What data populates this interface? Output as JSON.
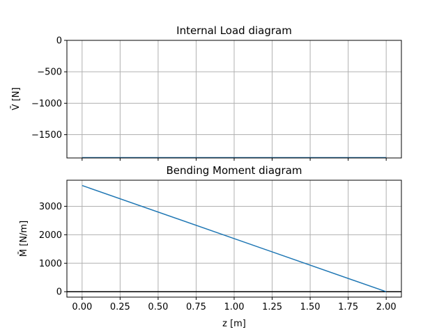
{
  "chart_data": [
    {
      "type": "line",
      "title": "Internal Load diagram",
      "xlabel": "",
      "ylabel": "V̄ [N]",
      "xlim": [
        -0.1,
        2.1
      ],
      "ylim": [
        -1870,
        0
      ],
      "xticks": [
        0,
        0.25,
        0.5,
        0.75,
        1.0,
        1.25,
        1.5,
        1.75,
        2.0
      ],
      "show_xtick_labels": false,
      "yticks": [
        0,
        -500,
        -1000,
        -1500
      ],
      "ytick_labels": [
        "0",
        "−500",
        "−1000",
        "−1500"
      ],
      "grid": true,
      "series": [
        {
          "x": [
            0,
            2.0
          ],
          "y": [
            -1865,
            -1865
          ],
          "color": "#1f77b4"
        }
      ]
    },
    {
      "type": "line",
      "title": "Bending Moment diagram",
      "xlabel": "z [m]",
      "ylabel": "M̄ [N/m]",
      "xlim": [
        -0.1,
        2.1
      ],
      "ylim": [
        -190,
        3915
      ],
      "xticks": [
        0,
        0.25,
        0.5,
        0.75,
        1.0,
        1.25,
        1.5,
        1.75,
        2.0
      ],
      "xtick_labels": [
        "0.00",
        "0.25",
        "0.50",
        "0.75",
        "1.00",
        "1.25",
        "1.50",
        "1.75",
        "2.00"
      ],
      "show_xtick_labels": true,
      "yticks": [
        0,
        1000,
        2000,
        3000
      ],
      "ytick_labels": [
        "0",
        "1000",
        "2000",
        "3000"
      ],
      "grid": true,
      "hline": {
        "y": 0,
        "color": "#000000"
      },
      "series": [
        {
          "x": [
            0,
            2.0
          ],
          "y": [
            3730,
            0
          ],
          "color": "#1f77b4"
        }
      ]
    }
  ]
}
